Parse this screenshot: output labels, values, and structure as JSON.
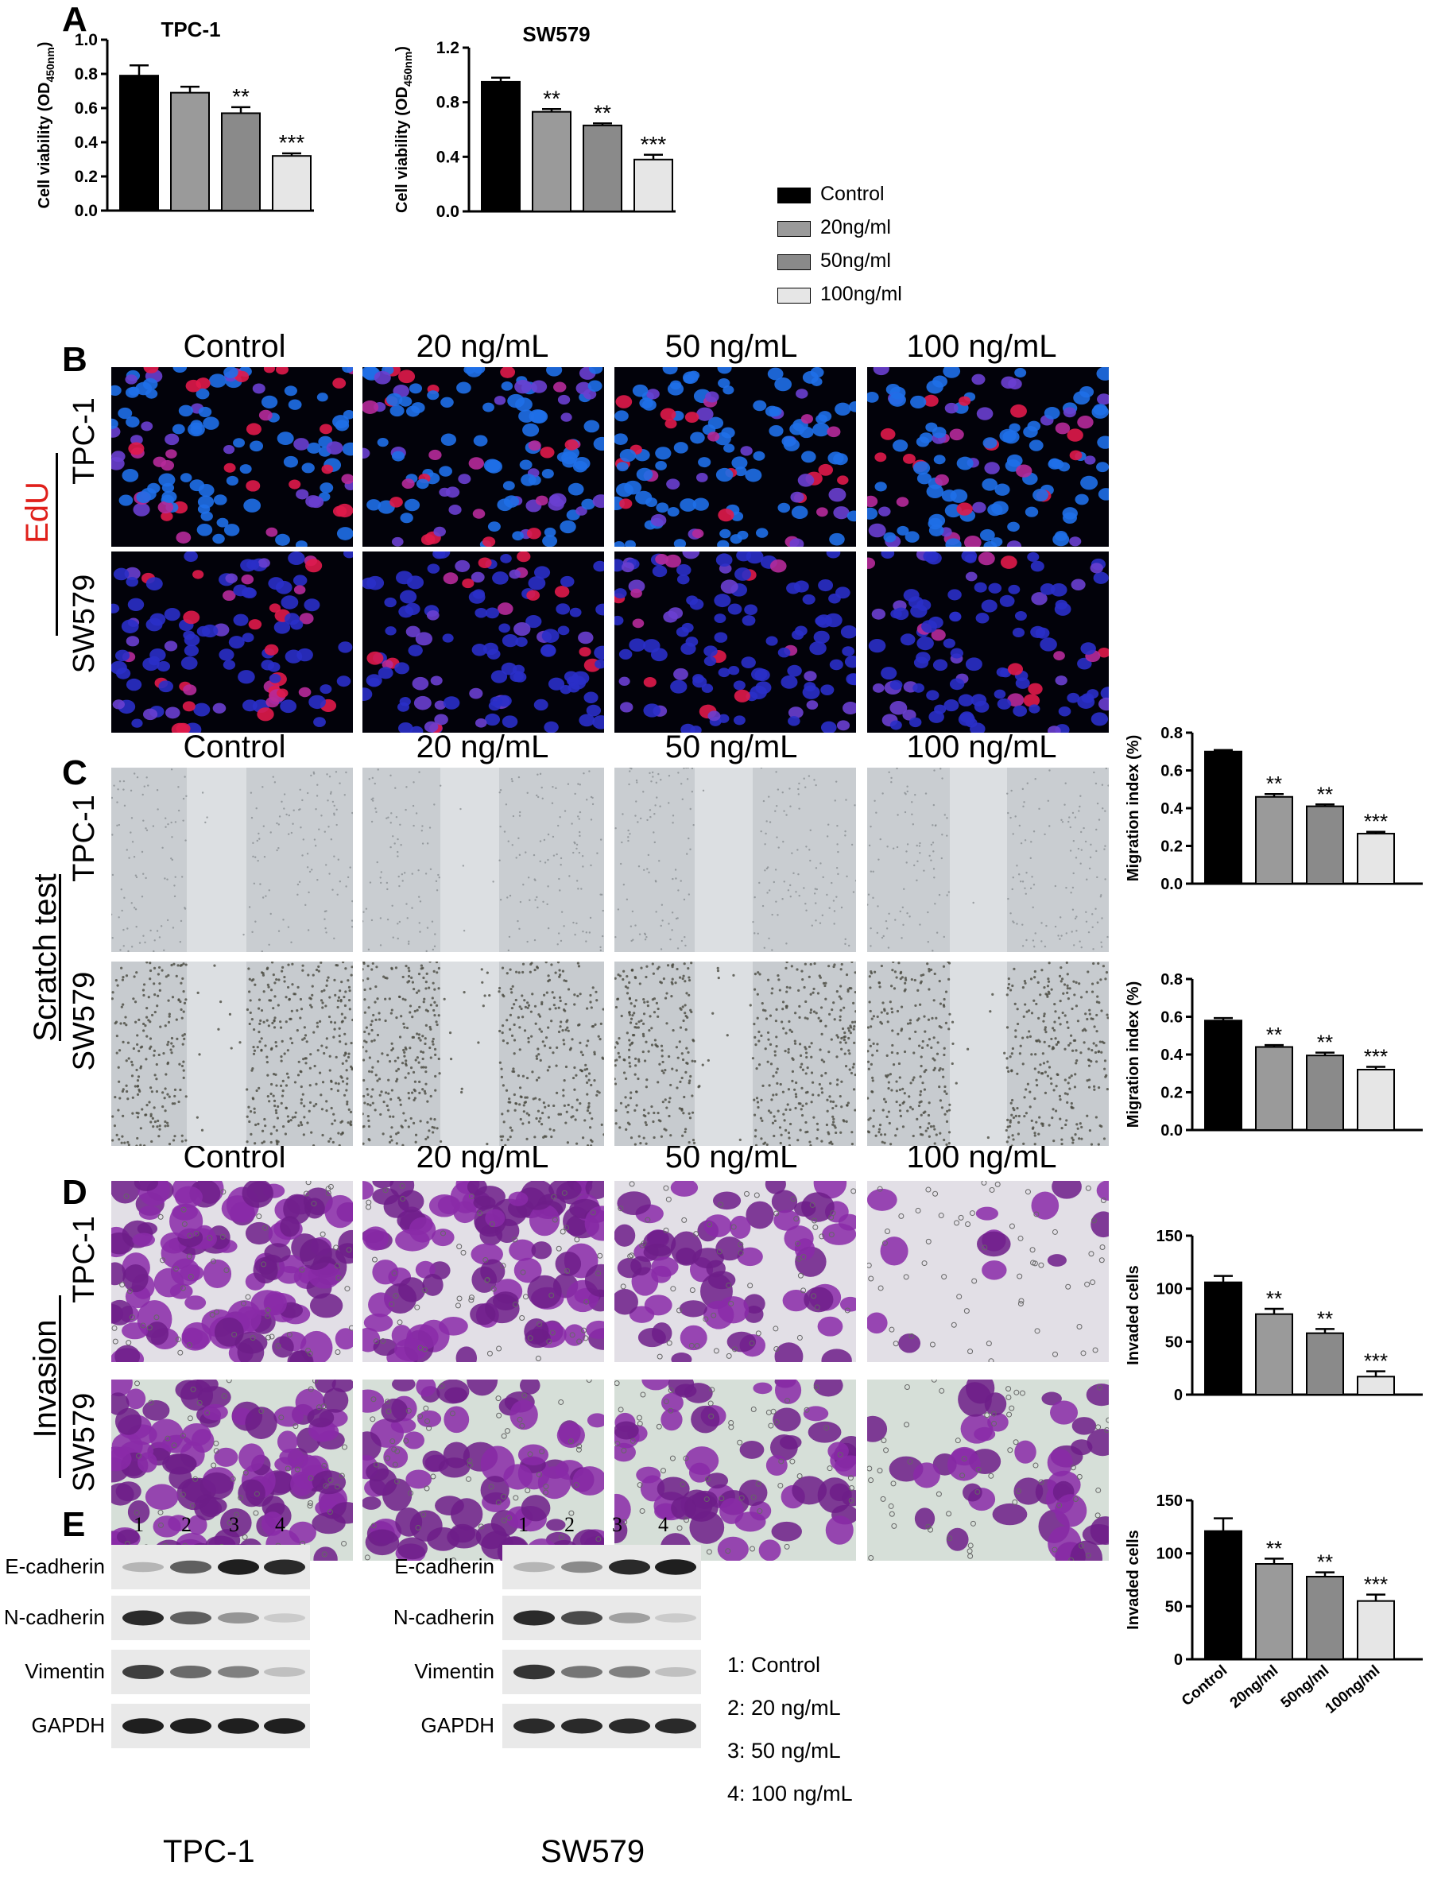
{
  "panels": {
    "A": "A",
    "B": "B",
    "C": "C",
    "D": "D",
    "E": "E"
  },
  "conditions": [
    "Control",
    "20 ng/mL",
    "50 ng/mL",
    "100 ng/mL"
  ],
  "cell_lines": {
    "tpc1": "TPC-1",
    "sw579": "SW579"
  },
  "assays": {
    "edu": "EdU",
    "scratch": "Scratch test",
    "invasion": "Invasion"
  },
  "legend": {
    "items": [
      {
        "label": "Control",
        "color": "#000000"
      },
      {
        "label": "20ng/ml",
        "color": "#9a9a9a"
      },
      {
        "label": "50ng/ml",
        "color": "#8a8a8a"
      },
      {
        "label": "100ng/ml",
        "color": "#e6e6e6"
      }
    ]
  },
  "chart_data": [
    {
      "type": "bar",
      "id": "viab-tpc1",
      "title": "TPC-1",
      "ylabel_main": "Cell viability (OD",
      "ylabel_sub": "450nm",
      "ylabel_end": ")",
      "ylim": [
        0,
        1.0
      ],
      "yticks": [
        "0.0",
        "0.2",
        "0.4",
        "0.6",
        "0.8",
        "1.0"
      ],
      "categories": [
        "Control",
        "20ng/ml",
        "50ng/ml",
        "100ng/ml"
      ],
      "values": [
        0.79,
        0.69,
        0.57,
        0.32
      ],
      "errors": [
        0.06,
        0.035,
        0.035,
        0.015
      ],
      "annotations": [
        "",
        "",
        "**",
        "***"
      ]
    },
    {
      "type": "bar",
      "id": "viab-sw579",
      "title": "SW579",
      "ylabel_main": "Cell viability (OD",
      "ylabel_sub": "450nm",
      "ylabel_end": ")",
      "ylim": [
        0,
        1.2
      ],
      "yticks": [
        "0.0",
        "0.4",
        "0.8",
        "1.2"
      ],
      "categories": [
        "Control",
        "20ng/ml",
        "50ng/ml",
        "100ng/ml"
      ],
      "values": [
        0.95,
        0.73,
        0.63,
        0.38
      ],
      "errors": [
        0.03,
        0.02,
        0.015,
        0.035
      ],
      "annotations": [
        "",
        "**",
        "**",
        "***"
      ]
    },
    {
      "type": "bar",
      "id": "mig-tpc1",
      "title": "",
      "ylabel": "Migration index (%)",
      "ylim": [
        0,
        0.8
      ],
      "yticks": [
        "0.0",
        "0.2",
        "0.4",
        "0.6",
        "0.8"
      ],
      "categories": [
        "Control",
        "20ng/ml",
        "50ng/ml",
        "100ng/ml"
      ],
      "values": [
        0.7,
        0.46,
        0.41,
        0.265
      ],
      "errors": [
        0.008,
        0.015,
        0.01,
        0.01
      ],
      "annotations": [
        "",
        "**",
        "**",
        "***"
      ]
    },
    {
      "type": "bar",
      "id": "mig-sw579",
      "title": "",
      "ylabel": "Migration index (%)",
      "ylim": [
        0,
        0.8
      ],
      "yticks": [
        "0.0",
        "0.2",
        "0.4",
        "0.6",
        "0.8"
      ],
      "categories": [
        "Control",
        "20ng/ml",
        "50ng/ml",
        "100ng/ml"
      ],
      "values": [
        0.58,
        0.44,
        0.395,
        0.32
      ],
      "errors": [
        0.013,
        0.01,
        0.015,
        0.015
      ],
      "annotations": [
        "",
        "**",
        "**",
        "***"
      ]
    },
    {
      "type": "bar",
      "id": "inv-tpc1",
      "title": "",
      "ylabel": "Invaded cells",
      "ylim": [
        0,
        150
      ],
      "yticks": [
        "0",
        "50",
        "100",
        "150"
      ],
      "categories": [
        "Control",
        "20ng/ml",
        "50ng/ml",
        "100ng/ml"
      ],
      "values": [
        106,
        76,
        58,
        17
      ],
      "errors": [
        6,
        5,
        4,
        5
      ],
      "annotations": [
        "",
        "**",
        "**",
        "***"
      ]
    },
    {
      "type": "bar",
      "id": "inv-sw579",
      "title": "",
      "ylabel": "Invaded cells",
      "ylim": [
        0,
        150
      ],
      "yticks": [
        "0",
        "50",
        "100",
        "150"
      ],
      "categories": [
        "Control",
        "20ng/ml",
        "50ng/ml",
        "100ng/ml"
      ],
      "values": [
        121,
        90,
        78,
        55
      ],
      "errors": [
        12,
        5,
        4,
        6
      ],
      "annotations": [
        "",
        "**",
        "**",
        "***"
      ],
      "show_xticklabels": true
    }
  ],
  "blots": {
    "tpc1": {
      "lanes": [
        "1",
        "2",
        "3",
        "4"
      ],
      "rows": [
        "E-cadherin",
        "N-cadherin",
        "Vimentin",
        "GAPDH"
      ],
      "intensity": [
        [
          0.25,
          0.65,
          0.95,
          0.9
        ],
        [
          0.9,
          0.65,
          0.4,
          0.15
        ],
        [
          0.8,
          0.6,
          0.5,
          0.2
        ],
        [
          0.95,
          0.95,
          0.95,
          0.95
        ]
      ],
      "caption": "TPC-1"
    },
    "sw579": {
      "lanes": [
        "1",
        "2",
        "3",
        "4"
      ],
      "rows": [
        "E-cadherin",
        "N-cadherin",
        "Vimentin",
        "GAPDH"
      ],
      "intensity": [
        [
          0.25,
          0.45,
          0.9,
          0.95
        ],
        [
          0.9,
          0.75,
          0.35,
          0.15
        ],
        [
          0.85,
          0.55,
          0.5,
          0.2
        ],
        [
          0.9,
          0.9,
          0.9,
          0.9
        ]
      ],
      "caption": "SW579"
    }
  },
  "lane_key": [
    "1: Control",
    "2: 20 ng/mL",
    "3: 50 ng/mL",
    "4: 100 ng/mL"
  ]
}
